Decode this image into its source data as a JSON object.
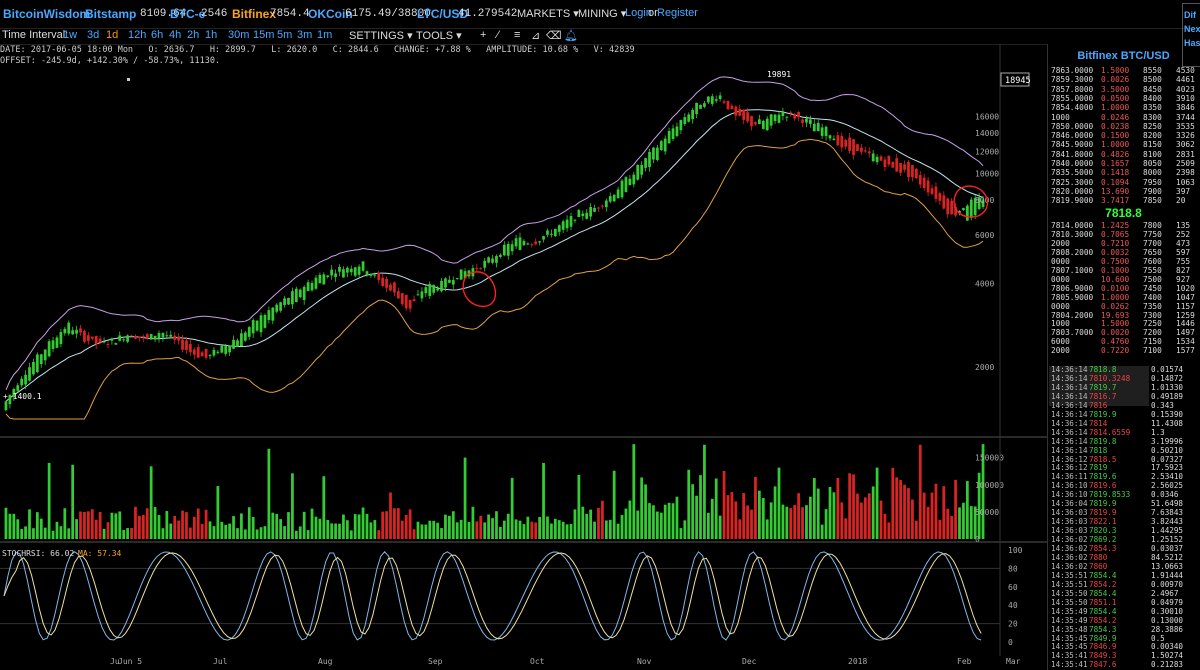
{
  "nav": {
    "brand": "BitcoinWisdom",
    "tickers": [
      {
        "name": "Bitstamp",
        "value": "8109.64",
        "color": "blue"
      },
      {
        "name": "BTC-e",
        "value": "2546",
        "color": "blue"
      },
      {
        "name": "Bitfinex",
        "value": "7854.4",
        "color": "orange"
      },
      {
        "name": "OKCoin",
        "value": "6175.49/38800",
        "color": "blue"
      },
      {
        "name": "LTC/USD",
        "value": "41.279542",
        "color": "blue"
      }
    ],
    "markets_label": "MARKETS",
    "mining_label": "MINING",
    "login_label": "Login",
    "or_label": "or",
    "register_label": "Register",
    "side_links": [
      "Dif",
      "Nex",
      "Has"
    ]
  },
  "toolbar": {
    "interval_label": "Time Interval:",
    "intervals": [
      "1w",
      "3d",
      "1d",
      "12h",
      "6h",
      "4h",
      "2h",
      "1h",
      "30m",
      "15m",
      "5m",
      "3m",
      "1m"
    ],
    "active_interval": "1d",
    "settings_label": "SETTINGS",
    "tools_label": "TOOLS",
    "tool_icons": [
      "plus-icon",
      "line-tool-icon",
      "ray-tool-icon",
      "fib-tool-icon",
      "eraser-icon",
      "bell-icon"
    ]
  },
  "info": {
    "line1": "DATE: 2017-06-05 18:00 Mon   O: 2636.7   H: 2899.7   L: 2620.0   C: 2844.6   CHANGE: +7.88 %   AMPLITUDE: 10.68 %   V: 42839",
    "line2": "OFFSET: -245.9d, +142.30% / -58.73%, 11130."
  },
  "chart_data": {
    "type": "candlestick",
    "price_axis_ticks": [
      "2000",
      "4000",
      "6000",
      "8000",
      "10000",
      "12000",
      "14000",
      "16000"
    ],
    "price_label_box": "18945",
    "annotation_high": "19891",
    "annotation_low": "1400.1",
    "volume_axis_ticks": [
      "0",
      "50000",
      "100000",
      "150000"
    ],
    "stoch_label": "STOCHRSI: 66.02",
    "stoch_ma_label": "MA: 57.34",
    "stoch_axis_ticks": [
      "0",
      "20",
      "40",
      "60",
      "80",
      "100"
    ],
    "x_labels": [
      "Ju",
      "Jun 5",
      "Jul",
      "Aug",
      "Sep",
      "Oct",
      "Nov",
      "Dec",
      "2018",
      "Feb",
      "Mar"
    ],
    "price_path": [
      [
        1400,
        1500
      ],
      [
        1700,
        1850
      ],
      [
        1950,
        2150
      ],
      [
        2300,
        2500
      ],
      [
        2650,
        2850
      ],
      [
        2700,
        2550
      ],
      [
        2550,
        2400
      ],
      [
        2450,
        2500
      ],
      [
        2550,
        2650
      ],
      [
        2600,
        2500
      ],
      [
        2550,
        2700
      ],
      [
        2600,
        2450
      ],
      [
        2400,
        2250
      ],
      [
        2250,
        2150
      ],
      [
        2200,
        2400
      ],
      [
        2400,
        2550
      ],
      [
        2600,
        2900
      ],
      [
        2900,
        3200
      ],
      [
        3300,
        3500
      ],
      [
        3500,
        3850
      ],
      [
        3900,
        4200
      ],
      [
        4300,
        4450
      ],
      [
        4350,
        4600
      ],
      [
        4450,
        4700
      ],
      [
        4300,
        4100
      ],
      [
        4000,
        3700
      ],
      [
        3500,
        3200
      ],
      [
        3600,
        3900
      ],
      [
        3850,
        3950
      ],
      [
        4100,
        4300
      ],
      [
        4350,
        4500
      ],
      [
        4600,
        4800
      ],
      [
        4900,
        5300
      ],
      [
        5400,
        5800
      ],
      [
        5700,
        5600
      ],
      [
        5900,
        6100
      ],
      [
        6200,
        6600
      ],
      [
        6800,
        7200
      ],
      [
        7300,
        7500
      ],
      [
        7900,
        8300
      ],
      [
        8500,
        9500
      ],
      [
        9900,
        10800
      ],
      [
        11500,
        12500
      ],
      [
        13000,
        14500
      ],
      [
        15200,
        16500
      ],
      [
        17000,
        18400
      ],
      [
        18900,
        19200
      ],
      [
        17500,
        16000
      ],
      [
        16200,
        15000
      ],
      [
        14200,
        15500
      ],
      [
        15800,
        16700
      ],
      [
        16500,
        15900
      ],
      [
        14500,
        15200
      ],
      [
        13800,
        14200
      ],
      [
        13200,
        12300
      ],
      [
        12900,
        11800
      ],
      [
        11200,
        11600
      ],
      [
        11300,
        10500
      ],
      [
        10900,
        10100
      ],
      [
        9800,
        9200
      ],
      [
        8700,
        8200
      ],
      [
        7900,
        7000
      ],
      [
        6900,
        7800
      ],
      [
        7500,
        8100
      ]
    ]
  },
  "orderbook": {
    "title": "Bitfinex BTC/USD",
    "asks": [
      [
        "7863.0000",
        "1.5000",
        "8550",
        "4530"
      ],
      [
        "7859.3000",
        "0.0026",
        "8500",
        "4461"
      ],
      [
        "7857.8000",
        "3.5000",
        "8450",
        "4023"
      ],
      [
        "7855.0000",
        "0.0500",
        "8400",
        "3910"
      ],
      [
        "7854.4000",
        "1.0000",
        "8350",
        "3846"
      ],
      [
        "1000",
        "0.0246",
        "8300",
        "3744"
      ],
      [
        "7850.0000",
        "0.0238",
        "8250",
        "3535"
      ],
      [
        "7846.0000",
        "0.1500",
        "8200",
        "3326"
      ],
      [
        "7845.9000",
        "1.0000",
        "8150",
        "3062"
      ],
      [
        "7841.8000",
        "0.4826",
        "8100",
        "2831"
      ],
      [
        "7840.0000",
        "0.1657",
        "8050",
        "2509"
      ],
      [
        "7835.5000",
        "0.1418",
        "8000",
        "2398"
      ],
      [
        "7825.3000",
        "0.1094",
        "7950",
        "1063"
      ],
      [
        "7820.0000",
        "13.690",
        "7900",
        "397"
      ],
      [
        "7819.9000",
        "3.7417",
        "7850",
        "20"
      ]
    ],
    "last_price": "7818.8",
    "bids": [
      [
        "7814.0000",
        "1.2425",
        "7800",
        "135"
      ],
      [
        "7810.3000",
        "0.7065",
        "7750",
        "252"
      ],
      [
        "2000",
        "0.7210",
        "7700",
        "473"
      ],
      [
        "7808.2000",
        "0.0032",
        "7650",
        "597"
      ],
      [
        "0000",
        "0.7500",
        "7600",
        "755"
      ],
      [
        "7807.1000",
        "0.1000",
        "7550",
        "827"
      ],
      [
        "0000",
        "10.600",
        "7500",
        "927"
      ],
      [
        "7806.9000",
        "0.0100",
        "7450",
        "1020"
      ],
      [
        "7805.9000",
        "1.0000",
        "7400",
        "1047"
      ],
      [
        "0000",
        "0.0262",
        "7350",
        "1157"
      ],
      [
        "7804.2000",
        "19.693",
        "7300",
        "1259"
      ],
      [
        "1000",
        "1.5000",
        "7250",
        "1446"
      ],
      [
        "7803.7000",
        "0.0020",
        "7200",
        "1497"
      ],
      [
        "6000",
        "0.4760",
        "7150",
        "1534"
      ],
      [
        "2000",
        "0.7220",
        "7100",
        "1577"
      ]
    ]
  },
  "trades": [
    [
      "14:36:14",
      "7818.8",
      "0.01574",
      "g"
    ],
    [
      "14:36:14",
      "7810.3248",
      "0.14872",
      "r"
    ],
    [
      "14:36:14",
      "7819.7",
      "1.01330",
      "g"
    ],
    [
      "14:36:14",
      "7816.7",
      "0.49189",
      "r"
    ],
    [
      "14:36:14",
      "7816",
      "0.343",
      "r"
    ],
    [
      "14:36:14",
      "7819.9",
      "0.15390",
      "g"
    ],
    [
      "14:36:14",
      "7814",
      "11.4308",
      "r"
    ],
    [
      "14:36:14",
      "7814.6559",
      "1.3",
      "r"
    ],
    [
      "14:36:14",
      "7819.8",
      "3.19996",
      "g"
    ],
    [
      "14:36:14",
      "7818",
      "0.50210",
      "g"
    ],
    [
      "14:36:12",
      "7818.5",
      "0.07327",
      "r"
    ],
    [
      "14:36:12",
      "7819",
      "17.5923",
      "g"
    ],
    [
      "14:36:11",
      "7819.6",
      "2.53410",
      "g"
    ],
    [
      "14:36:10",
      "7819.6",
      "2.56025",
      "r"
    ],
    [
      "14:36:10",
      "7819.8533",
      "0.0346",
      "g"
    ],
    [
      "14:36:04",
      "7819.9",
      "51.6498",
      "g"
    ],
    [
      "14:36:03",
      "7819.9",
      "7.63843",
      "r"
    ],
    [
      "14:36:03",
      "7822.1",
      "3.82443",
      "r"
    ],
    [
      "14:36:03",
      "7820.3",
      "1.44295",
      "g"
    ],
    [
      "14:36:02",
      "7869.2",
      "1.25152",
      "g"
    ],
    [
      "14:36:02",
      "7854.3",
      "0.03037",
      "r"
    ],
    [
      "14:36:02",
      "7880",
      "84.5212",
      "r"
    ],
    [
      "14:36:02",
      "7860",
      "13.0663",
      "r"
    ],
    [
      "14:35:51",
      "7854.4",
      "1.91444",
      "g"
    ],
    [
      "14:35:51",
      "7854.2",
      "0.00970",
      "r"
    ],
    [
      "14:35:50",
      "7854.4",
      "2.4967",
      "g"
    ],
    [
      "14:35:50",
      "7851.1",
      "0.04979",
      "r"
    ],
    [
      "14:35:49",
      "7854.4",
      "0.30010",
      "g"
    ],
    [
      "14:35:49",
      "7854.2",
      "0.13000",
      "r"
    ],
    [
      "14:35:48",
      "7854.3",
      "28.3886",
      "g"
    ],
    [
      "14:35:45",
      "7849.9",
      "0.5",
      "g"
    ],
    [
      "14:35:45",
      "7846.9",
      "0.00340",
      "r"
    ],
    [
      "14:35:41",
      "7849.3",
      "1.50274",
      "r"
    ],
    [
      "14:35:41",
      "7847.6",
      "0.21283",
      "r"
    ]
  ],
  "colors": {
    "up": "#33cc33",
    "down": "#dd2222",
    "brand_blue": "#4aa8ff",
    "orange": "#f7a41d",
    "band_upper": "#c7a0e8",
    "band_mid": "#bfe4f0",
    "band_lower": "#e0a040",
    "circle": "#ff2020"
  }
}
